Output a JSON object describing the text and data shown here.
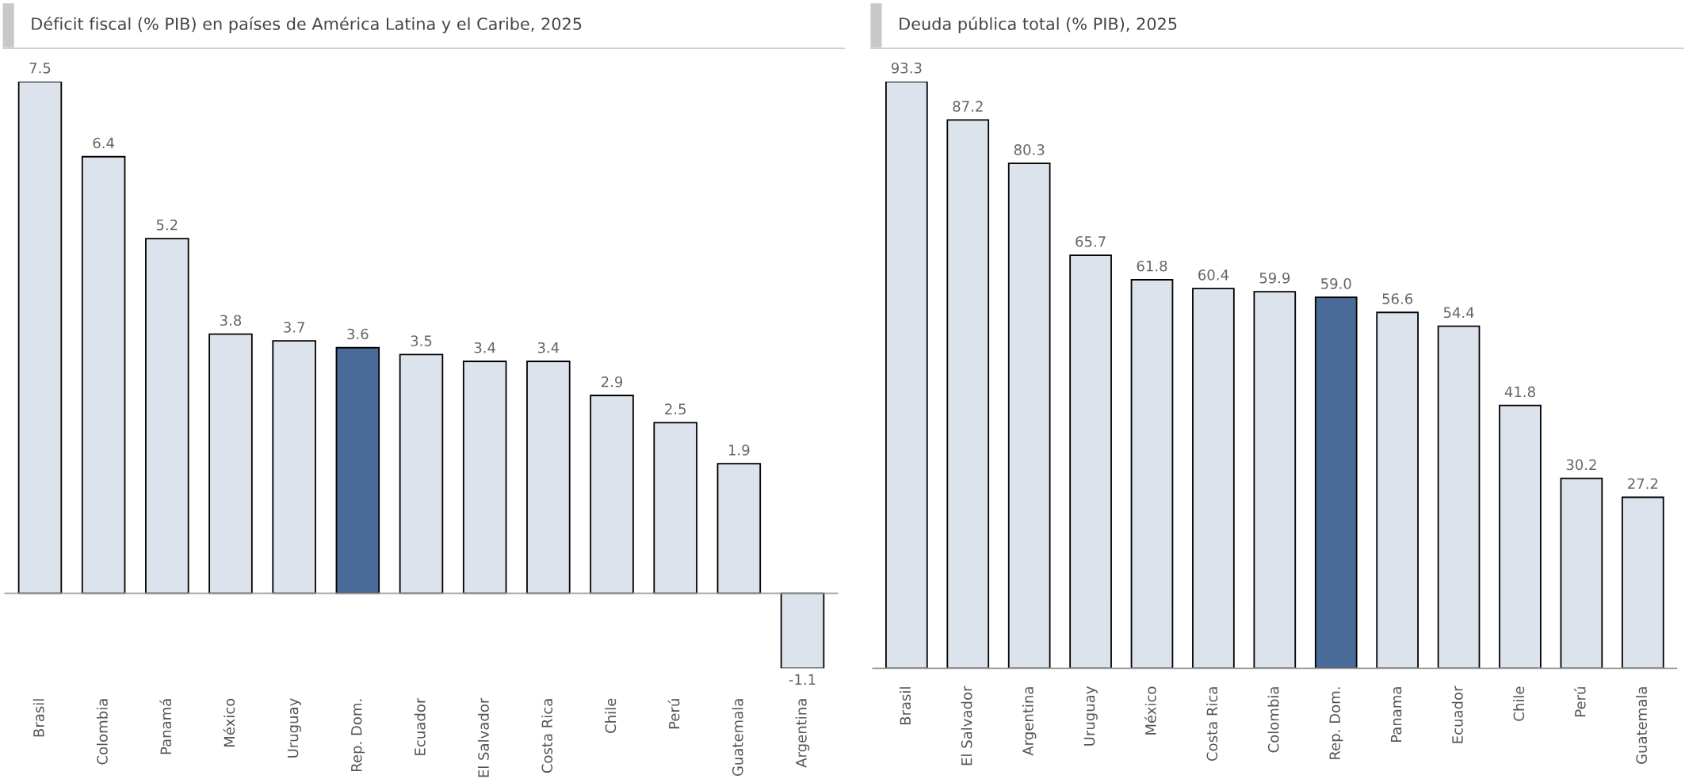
{
  "chart_data": [
    {
      "type": "bar",
      "title": "Déficit fiscal (% PIB) en países de América Latina y el Caribe, 2025",
      "categories": [
        "Brasil",
        "Colombia",
        "Panamá",
        "México",
        "Uruguay",
        "Rep. Dom.",
        "Ecuador",
        "El Salvador",
        "Costa Rica",
        "Chile",
        "Perú",
        "Guatemala",
        "Argentina"
      ],
      "values": [
        7.5,
        6.4,
        5.2,
        3.8,
        3.7,
        3.6,
        3.5,
        3.4,
        3.4,
        2.9,
        2.5,
        1.9,
        -1.1
      ],
      "colors": [
        "#dde3ed",
        "#dde3ed",
        "#dde3ed",
        "#dde3ed",
        "#dde3ed",
        "#4a6a99",
        "#dde3ed",
        "#dde3ed",
        "#dde3ed",
        "#dde3ed",
        "#dde3ed",
        "#dde3ed",
        "#dde3ed"
      ],
      "data_labels": true
    },
    {
      "type": "bar",
      "title": "Deuda pública total (% PIB), 2025",
      "categories": [
        "Brasil",
        "El Salvador",
        "Argentina",
        "Uruguay",
        "México",
        "Costa Rica",
        "Colombia",
        "Rep. Dom.",
        "Panama",
        "Ecuador",
        "Chile",
        "Perú",
        "Guatemala"
      ],
      "values": [
        93.3,
        87.2,
        80.3,
        65.7,
        61.8,
        60.4,
        59.9,
        59.0,
        56.6,
        54.4,
        41.8,
        30.2,
        27.2
      ],
      "colors": [
        "#dde3ed",
        "#dde3ed",
        "#dde3ed",
        "#dde3ed",
        "#dde3ed",
        "#dde3ed",
        "#dde3ed",
        "#4a6a99",
        "#dde3ed",
        "#dde3ed",
        "#dde3ed",
        "#dde3ed",
        "#dde3ed"
      ],
      "value_labels": [
        "93.3",
        "87.2",
        "80.3",
        "65.7",
        "61.8",
        "60.4",
        "59.9",
        "59.0",
        "56.6",
        "54.4",
        "41.8",
        "30.2",
        "27.2"
      ]
    }
  ]
}
